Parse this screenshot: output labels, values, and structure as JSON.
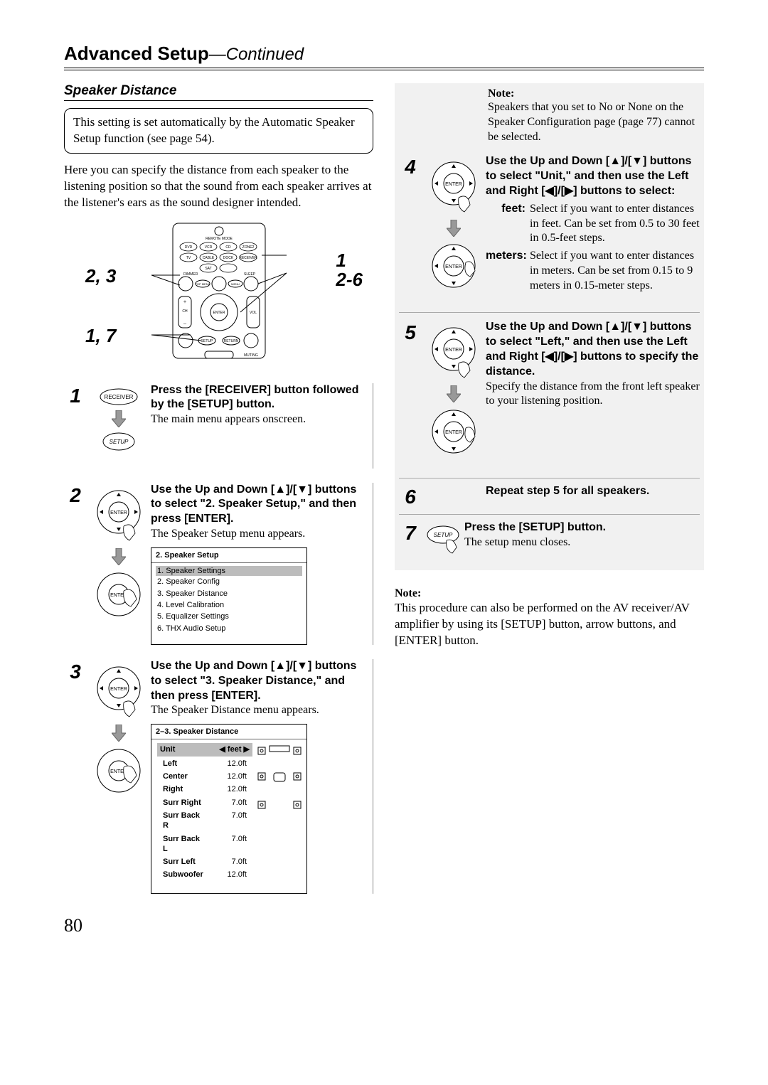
{
  "page": {
    "title_main": "Advanced Setup",
    "title_continued": "—Continued",
    "number": "80"
  },
  "section": {
    "heading": "Speaker Distance",
    "info_box": "This setting is set automatically by the Automatic Speaker Setup function (see page 54).",
    "intro": "Here you can specify the distance from each speaker to the listening position so that the sound from each speaker arrives at the listener's ears as the sound designer intended."
  },
  "callouts": {
    "left1": "2, 3",
    "left2": "1, 7",
    "right_top": "1",
    "right_bottom": "2-6"
  },
  "steps": {
    "s1": {
      "num": "1",
      "bold": "Press the [RECEIVER] button followed by the [SETUP] button.",
      "text": "The main menu appears onscreen."
    },
    "s2": {
      "num": "2",
      "bold": "Use the Up and Down [▲]/[▼] buttons to select \"2. Speaker Setup,\" and then press [ENTER].",
      "text": "The Speaker Setup menu appears.",
      "menu_title": "2.  Speaker Setup",
      "menu_items": {
        "i1": "1.   Speaker Settings",
        "i2": "2.   Speaker Config",
        "i3": "3.   Speaker Distance",
        "i4": "4.   Level Calibration",
        "i5": "5.   Equalizer Settings",
        "i6": "6.   THX Audio Setup"
      }
    },
    "s3": {
      "num": "3",
      "bold": "Use the Up and Down [▲]/[▼] buttons to select \"3. Speaker Distance,\" and then press [ENTER].",
      "text": "The Speaker Distance menu appears.",
      "menu_title": "2–3.  Speaker Distance",
      "unit_label": "Unit",
      "unit_value": "◀   feet   ▶",
      "rows": [
        {
          "label": "Left",
          "val": "12.0ft"
        },
        {
          "label": "Center",
          "val": "12.0ft"
        },
        {
          "label": "Right",
          "val": "12.0ft"
        },
        {
          "label": "Surr Right",
          "val": "7.0ft"
        },
        {
          "label": "Surr Back R",
          "val": "7.0ft"
        },
        {
          "label": "Surr Back L",
          "val": "7.0ft"
        },
        {
          "label": "Surr Left",
          "val": "7.0ft"
        },
        {
          "label": "Subwoofer",
          "val": "12.0ft"
        }
      ]
    },
    "s4": {
      "num": "4",
      "note_label": "Note:",
      "note_text": "Speakers that you set to No or None on the Speaker Configuration page (page 77) cannot be selected.",
      "bold": "Use the Up and Down [▲]/[▼] buttons to select \"Unit,\" and then use the Left and Right [◀]/[▶] buttons to select:",
      "feet_label": "feet:",
      "feet_text": "Select if you want to enter distances in feet. Can be set from 0.5 to 30 feet in 0.5-feet steps.",
      "meters_label": "meters:",
      "meters_text": "Select if you want to enter distances in meters. Can be set from 0.15 to 9 meters in 0.15-meter steps."
    },
    "s5": {
      "num": "5",
      "bold": "Use the Up and Down [▲]/[▼] buttons to select \"Left,\" and then use the Left and Right [◀]/[▶] buttons to specify the distance.",
      "text": "Specify the distance from the front left speaker to your listening position."
    },
    "s6": {
      "num": "6",
      "bold": "Repeat step 5 for all speakers."
    },
    "s7": {
      "num": "7",
      "bold": "Press the [SETUP] button.",
      "text": "The setup menu closes."
    }
  },
  "bottom_note": {
    "label": "Note:",
    "text": "This procedure can also be performed on the AV receiver/AV amplifier by using its [SETUP] button, arrow buttons, and [ENTER] button."
  },
  "icons": {
    "receiver_label": "RECEIVER",
    "setup_label": "SETUP",
    "enter_label": "ENTER"
  }
}
